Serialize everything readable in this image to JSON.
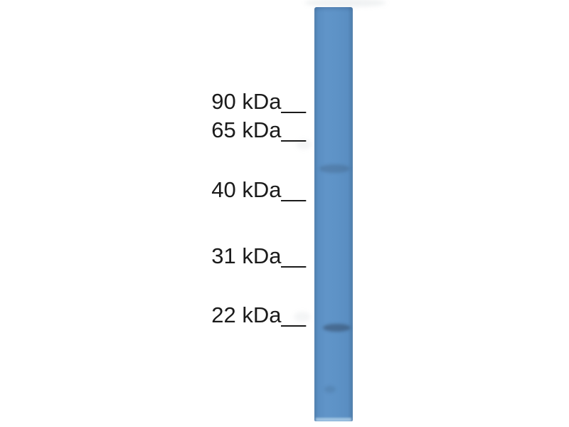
{
  "figure": {
    "type": "western-blot-photo",
    "background_color": "#ffffff",
    "lane": {
      "name": "blot-lane",
      "base_color": "#5e93c7",
      "edge_color": "#4f81b1",
      "description": "single vertical blue-stained membrane strip"
    },
    "markers": [
      {
        "label": "90 kDa",
        "tick": "__"
      },
      {
        "label": "65 kDa",
        "tick": "__"
      },
      {
        "label": "40 kDa",
        "tick": "__"
      },
      {
        "label": "31 kDa",
        "tick": "__"
      },
      {
        "label": "22 kDa",
        "tick": "__"
      }
    ],
    "bands": [
      {
        "name": "upper-band",
        "location": "between 65 kDa and 40 kDa marks",
        "intensity": "faint",
        "color": "rgba(56,82,112,0.30)"
      },
      {
        "name": "lower-band",
        "location": "just below 22 kDa mark",
        "intensity": "weak-moderate",
        "color": "rgba(48,68,94,0.50)"
      }
    ]
  }
}
